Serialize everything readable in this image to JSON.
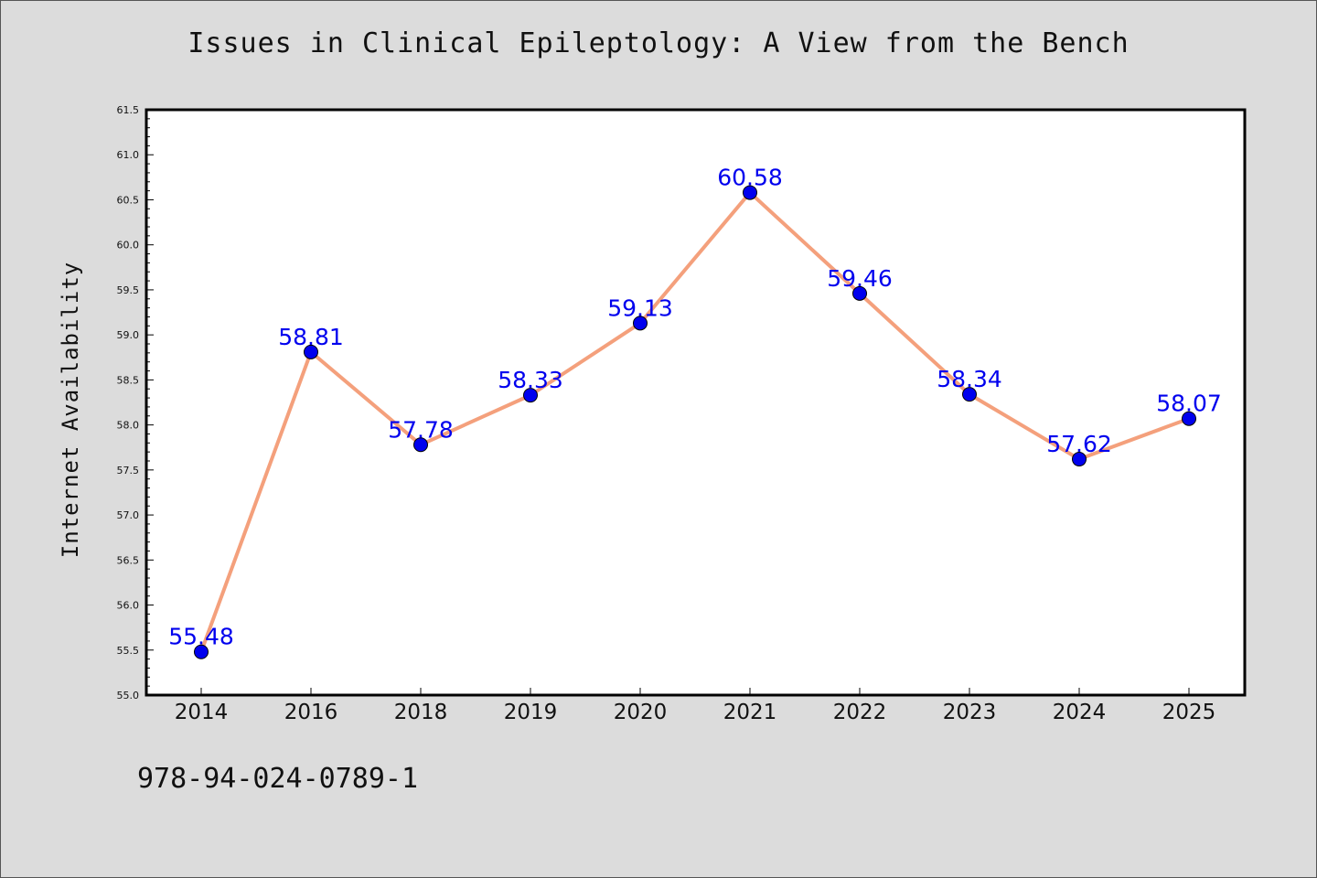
{
  "chart_data": {
    "type": "line",
    "title": "Issues in Clinical Epileptology: A View from the Bench",
    "xlabel": "",
    "ylabel": "Internet Availability",
    "categories": [
      "2014",
      "2016",
      "2018",
      "2019",
      "2020",
      "2021",
      "2022",
      "2023",
      "2024",
      "2025"
    ],
    "series": [
      {
        "values": [
          55.48,
          58.81,
          57.78,
          58.33,
          59.13,
          60.58,
          59.46,
          58.34,
          57.62,
          58.07
        ],
        "labels": [
          "55.48",
          "58.81",
          "57.78",
          "58.33",
          "59.13",
          "60.58",
          "59.46",
          "58.34",
          "57.62",
          "58.07"
        ]
      }
    ],
    "ylim": [
      55.0,
      61.5
    ],
    "yticks": [
      "55.0",
      "55.5",
      "56.0",
      "56.5",
      "57.0",
      "57.5",
      "58.0",
      "58.5",
      "59.0",
      "59.5",
      "60.0",
      "60.5",
      "61.0",
      "61.5"
    ],
    "grid": false,
    "legend": "none"
  },
  "footer": {
    "isbn": "978-94-024-0789-1"
  },
  "colors": {
    "line": "#f4a07c",
    "marker": "#0000ee",
    "label": "#0000ee",
    "background": "#dcdcdc",
    "plot_background": "#ffffff"
  }
}
